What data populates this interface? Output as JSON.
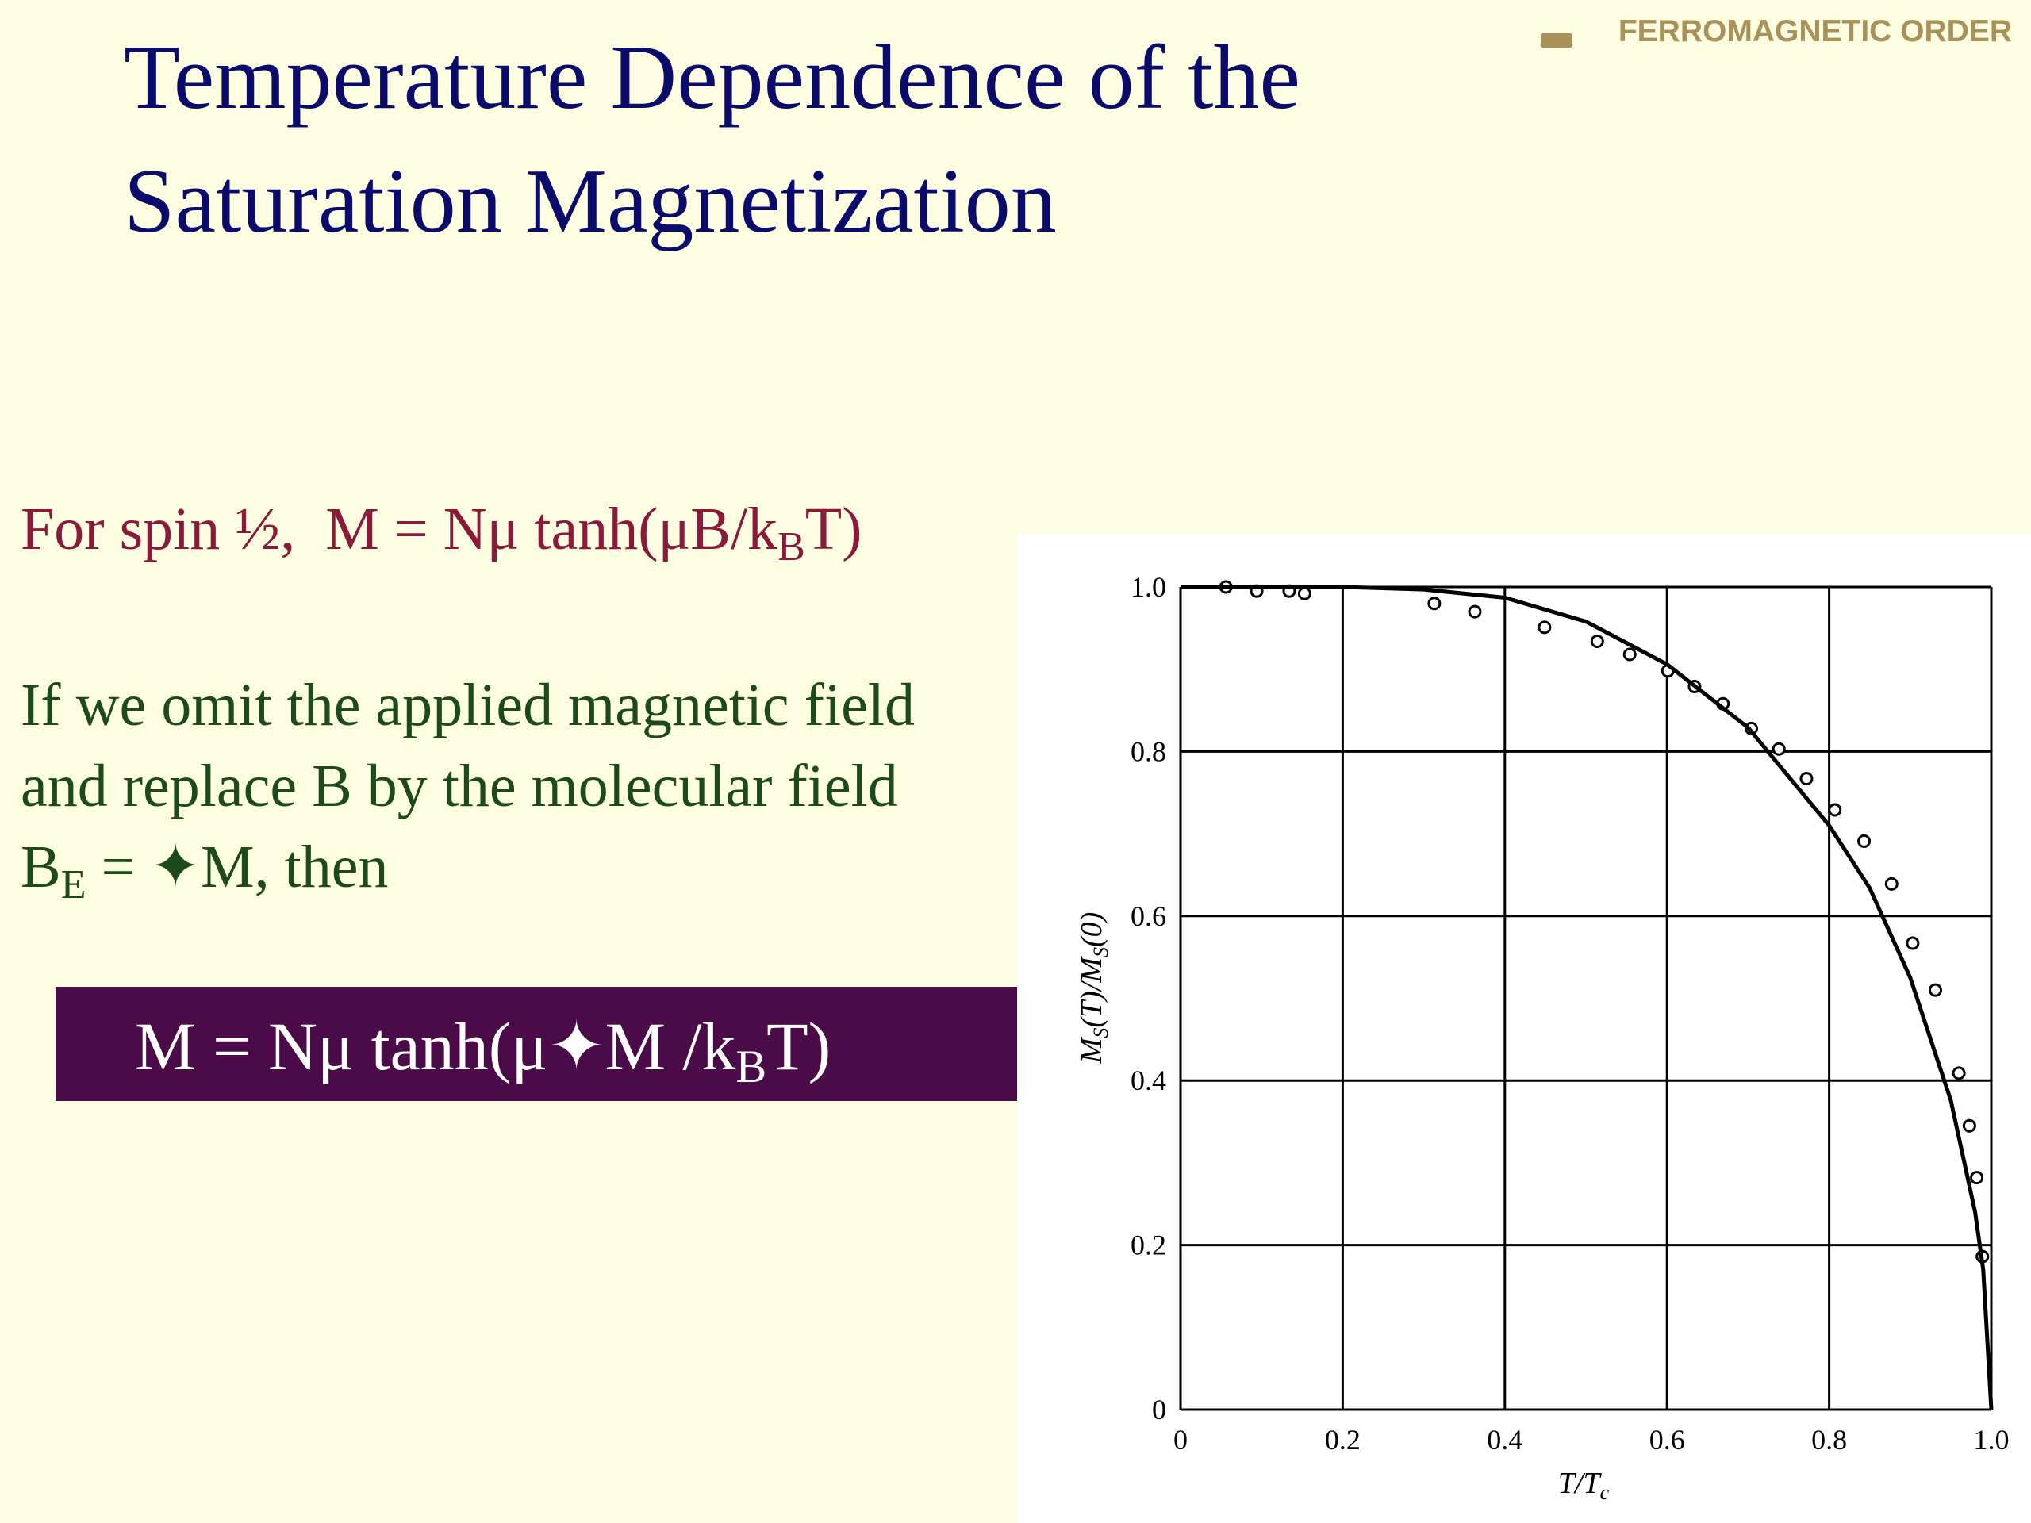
{
  "header": {
    "tag": "FERROMAGNETIC ORDER",
    "title": [
      "Temperature Dependence of the",
      "Saturation Magnetization"
    ]
  },
  "body": {
    "spin_eq": [
      "For spin ½,  M = N",
      "μ",
      " tanh(μB/k",
      "B",
      "T)"
    ],
    "paragraph": [
      "If we omit the applied magnetic field",
      "and replace B by the molecular field"
    ],
    "be_line": [
      "B",
      "E",
      " = ",
      "✦",
      "M, then"
    ]
  },
  "boxed_eq": [
    "M = N",
    "μ",
    " tanh(μ",
    "✦",
    "M /k",
    "B",
    "T)"
  ],
  "chart_data": {
    "type": "scatter",
    "xlabel": [
      "T/T",
      "c"
    ],
    "ylabel": [
      "M",
      "S",
      "(T)/M",
      "S",
      "(0)"
    ],
    "xlim": [
      0,
      1
    ],
    "ylim": [
      0,
      1
    ],
    "xticks": [
      0,
      0.2,
      0.4,
      0.6,
      0.8,
      {
        "value": 1,
        "label": "1.0"
      }
    ],
    "yticks": [
      0,
      0.2,
      0.4,
      0.6,
      0.8,
      {
        "value": 1,
        "label": "1.0"
      }
    ],
    "grid": true,
    "series": [
      {
        "kind": "scatter",
        "color": "#000000",
        "x": [
          0.056,
          0.094,
          0.134,
          0.153,
          0.313,
          0.363,
          0.449,
          0.514,
          0.554,
          0.601,
          0.634,
          0.669,
          0.704,
          0.738,
          0.772,
          0.807,
          0.843,
          0.877,
          0.903,
          0.931,
          0.96,
          0.973,
          0.982,
          0.989
        ],
        "values": [
          1.0,
          0.995,
          0.995,
          0.992,
          0.98,
          0.97,
          0.951,
          0.934,
          0.918,
          0.898,
          0.879,
          0.858,
          0.828,
          0.803,
          0.767,
          0.729,
          0.691,
          0.639,
          0.567,
          0.51,
          0.409,
          0.345,
          0.282,
          0.186
        ]
      },
      {
        "kind": "line",
        "color": "#000000",
        "x": [
          0,
          0.1,
          0.2,
          0.3,
          0.4,
          0.5,
          0.6,
          0.7,
          0.8,
          0.85,
          0.9,
          0.95,
          0.98,
          0.99,
          1.0
        ],
        "values": [
          1.0,
          1.0,
          1.0,
          0.997,
          0.987,
          0.958,
          0.906,
          0.829,
          0.71,
          0.634,
          0.525,
          0.376,
          0.24,
          0.17,
          0
        ]
      }
    ]
  }
}
